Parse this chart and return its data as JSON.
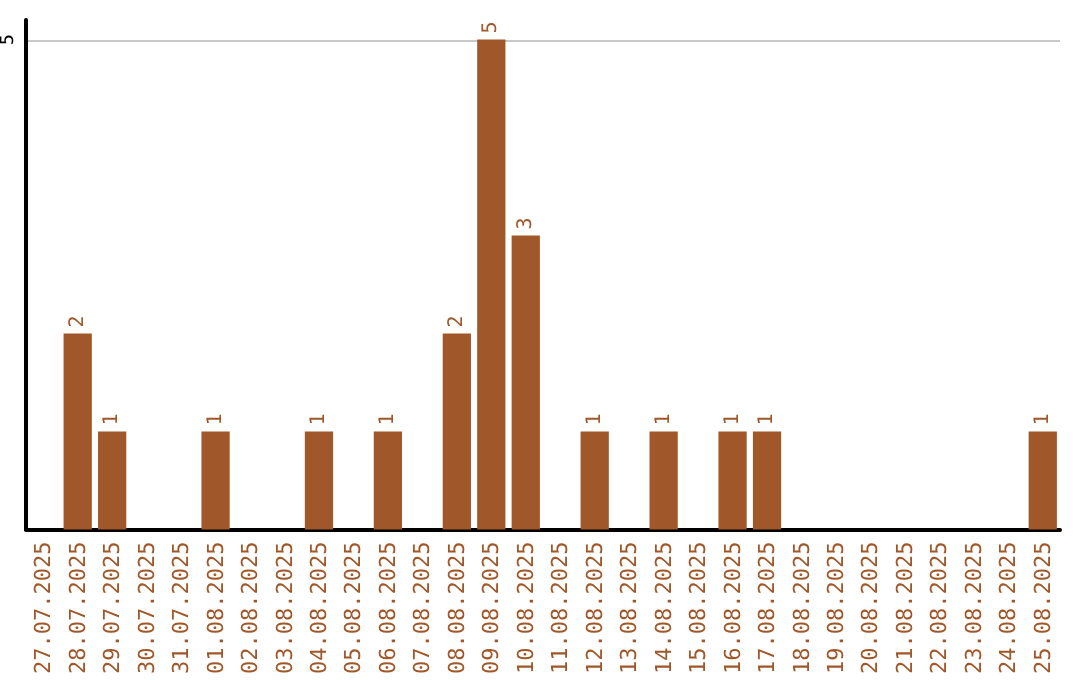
{
  "chart_data": {
    "type": "bar",
    "categories": [
      "27.07.2025",
      "28.07.2025",
      "29.07.2025",
      "30.07.2025",
      "31.07.2025",
      "01.08.2025",
      "02.08.2025",
      "03.08.2025",
      "04.08.2025",
      "05.08.2025",
      "06.08.2025",
      "07.08.2025",
      "08.08.2025",
      "09.08.2025",
      "10.08.2025",
      "11.08.2025",
      "12.08.2025",
      "13.08.2025",
      "14.08.2025",
      "15.08.2025",
      "16.08.2025",
      "17.08.2025",
      "18.08.2025",
      "19.08.2025",
      "20.08.2025",
      "21.08.2025",
      "22.08.2025",
      "23.08.2025",
      "24.08.2025",
      "25.08.2025"
    ],
    "values": [
      0,
      2,
      1,
      0,
      0,
      1,
      0,
      0,
      1,
      0,
      1,
      0,
      2,
      5,
      3,
      0,
      1,
      0,
      1,
      0,
      1,
      1,
      0,
      0,
      0,
      0,
      0,
      0,
      0,
      1
    ],
    "value_labels": [
      null,
      "2",
      "1",
      null,
      null,
      "1",
      null,
      null,
      "1",
      null,
      "1",
      null,
      "2",
      "5",
      "3",
      null,
      "1",
      null,
      "1",
      null,
      "1",
      "1",
      null,
      null,
      null,
      null,
      null,
      null,
      null,
      "1"
    ],
    "color": "#a0582a",
    "ylim": [
      0,
      5.2
    ],
    "yticks": [
      5
    ],
    "grid": "y"
  }
}
